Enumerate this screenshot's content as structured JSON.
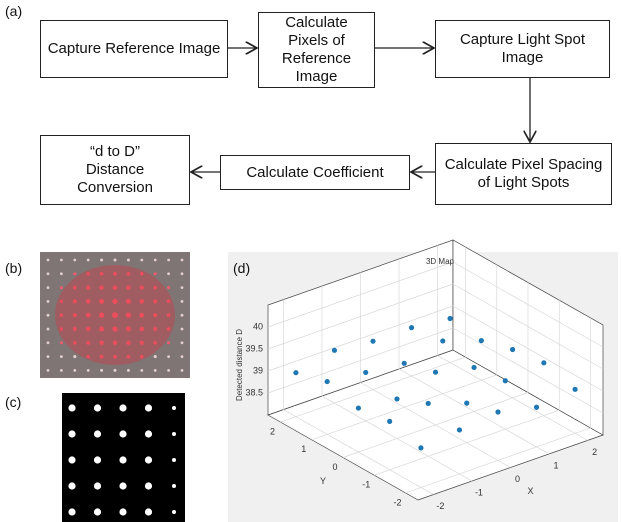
{
  "panel_labels": [
    "(a)",
    "(b)",
    "(c)",
    "(d)"
  ],
  "flowchart": {
    "nodes": [
      {
        "label": "Capture Reference Image"
      },
      {
        "label": "Calculate Pixels of Reference Image"
      },
      {
        "label": "Capture Light Spot Image"
      },
      {
        "label": "Calculate Pixel Spacing of Light Spots"
      },
      {
        "label": "Calculate Coefficient"
      },
      {
        "label": "“d to D” Distance Conversion"
      }
    ]
  },
  "chart_data": {
    "type": "scatter3d",
    "title": "3D Map",
    "z_label": "Detected distance D",
    "x_label": "X",
    "y_label": "Y",
    "x": [
      -2,
      -2,
      -2,
      -2,
      -2,
      -1,
      -1,
      -1,
      -1,
      -1,
      0,
      0,
      0,
      0,
      0,
      1,
      1,
      1,
      1,
      1,
      2,
      2,
      2,
      2,
      2
    ],
    "y": [
      -2,
      -1,
      0,
      1,
      2,
      -2,
      -1,
      0,
      1,
      2,
      -2,
      -1,
      0,
      1,
      2,
      -2,
      -1,
      0,
      1,
      2,
      -2,
      -1,
      0,
      1,
      2
    ],
    "z": [
      38.9,
      39.1,
      39.0,
      39.2,
      39.0,
      39.0,
      39.2,
      38.9,
      39.1,
      39.2,
      39.1,
      38.9,
      39.2,
      39.0,
      39.1,
      38.9,
      39.1,
      39.0,
      39.2,
      39.1,
      39.0,
      39.2,
      39.1,
      38.9,
      39.0
    ],
    "xlim": [
      -2.4,
      2.4
    ],
    "ylim": [
      -2.4,
      2.4
    ],
    "zlim": [
      38,
      40.5
    ],
    "xticks": [
      -2,
      -1,
      0,
      1,
      2
    ],
    "yticks": [
      -2,
      -1,
      0,
      1,
      2
    ],
    "zticks": [
      38.5,
      39,
      39.5,
      40
    ],
    "color": "#1f77b4",
    "grid": true
  }
}
